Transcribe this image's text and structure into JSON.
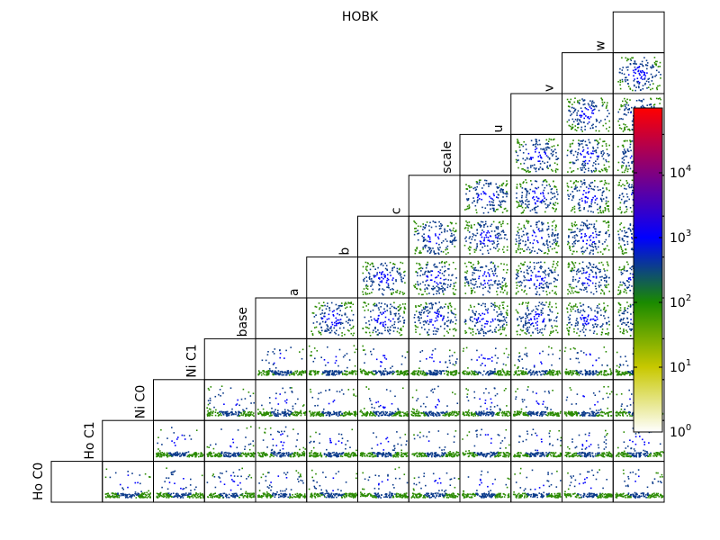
{
  "chart_data": {
    "type": "heatmap",
    "title": "HOBK",
    "parameters": [
      "Ho C0",
      "Ho C1",
      "Ni C0",
      "Ni C1",
      "base",
      "a",
      "b",
      "c",
      "scale",
      "u",
      "v",
      "w"
    ],
    "layout": "lower-triangular pairwise 2D histograms",
    "colorbar": {
      "scale": "log",
      "tick_labels": [
        "10",
        "10",
        "10",
        "10",
        "10"
      ],
      "tick_exponents": [
        "0",
        "1",
        "2",
        "3",
        "4"
      ],
      "range": [
        1,
        100000
      ],
      "colormap": [
        "#ffffff",
        "#c8c800",
        "#008000",
        "#0000ff",
        "#800080",
        "#ff0000"
      ]
    },
    "grid": false,
    "legend": "none"
  }
}
